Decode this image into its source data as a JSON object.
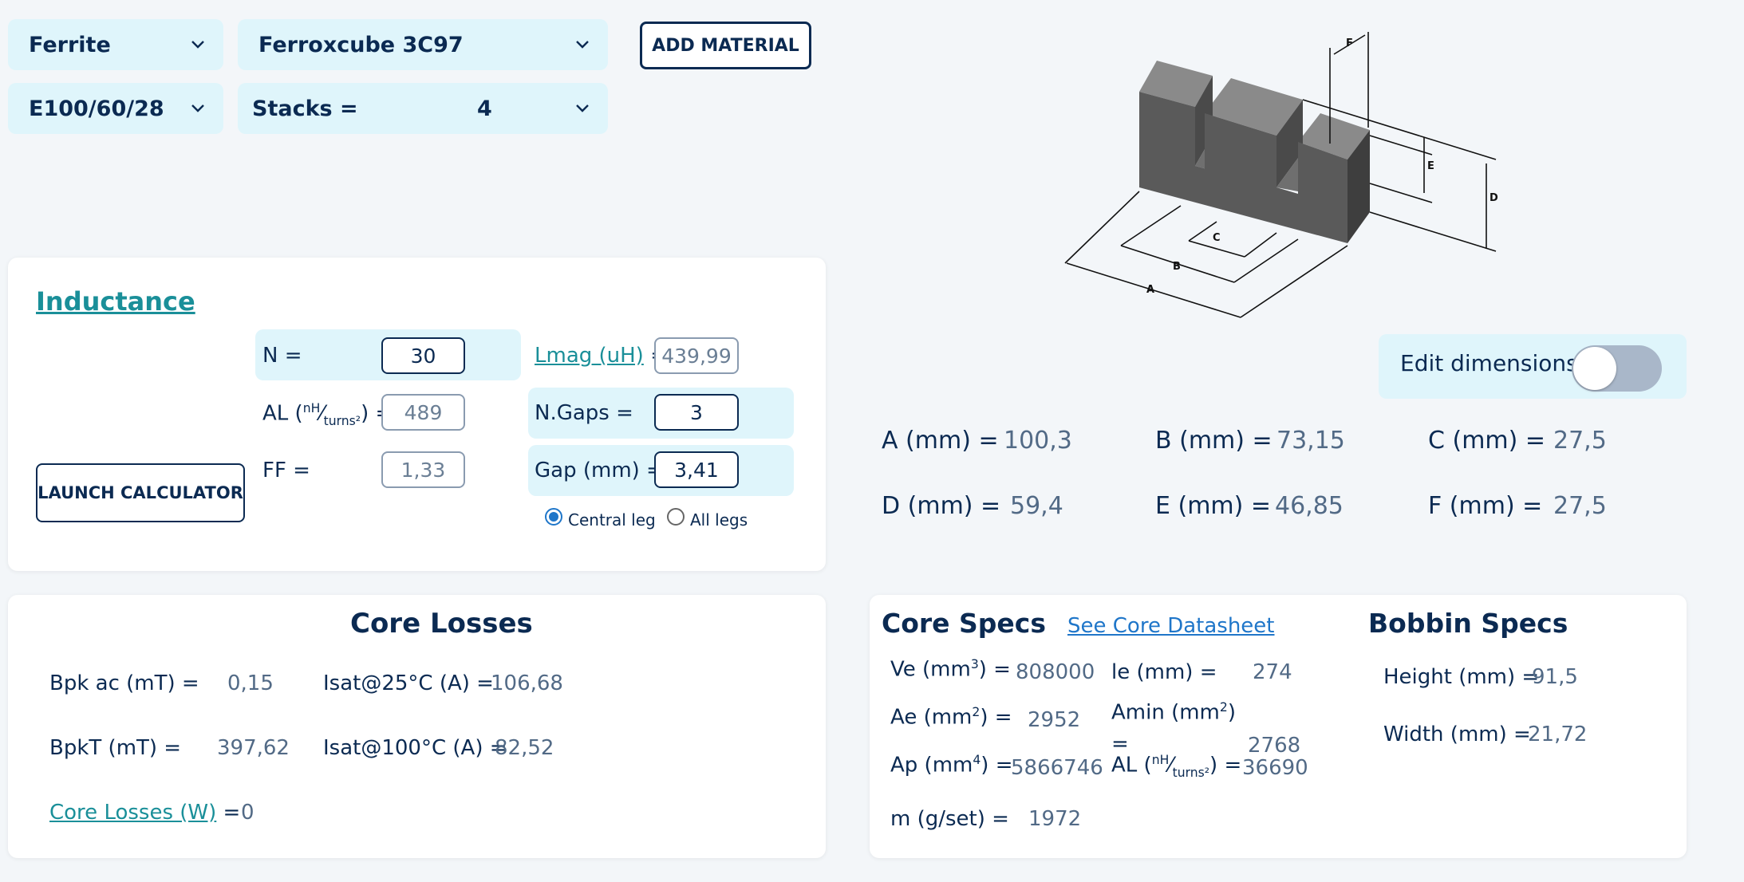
{
  "selects": {
    "material_type": "Ferrite",
    "material": "Ferroxcube 3C97",
    "shape": "E100/60/28",
    "stacks_label": "Stacks =",
    "stacks_value": "4"
  },
  "add_material_label": "ADD MATERIAL",
  "diagram": {
    "labels": [
      "A",
      "B",
      "C",
      "D",
      "E",
      "F"
    ]
  },
  "edit_dimensions_label": "Edit dimensions",
  "dimensions": [
    {
      "label": "A (mm) =",
      "value": "100,3"
    },
    {
      "label": "B (mm) =",
      "value": "73,15"
    },
    {
      "label": "C (mm) =",
      "value": "27,5"
    },
    {
      "label": "D (mm) =",
      "value": "59,4"
    },
    {
      "label": "E (mm) =",
      "value": "46,85"
    },
    {
      "label": "F (mm) =",
      "value": "27,5"
    }
  ],
  "inductance": {
    "title": "Inductance",
    "n_label": "N =",
    "n_value": "30",
    "al_label": "AL",
    "al_value": "489",
    "ff_label": "FF =",
    "ff_value": "1,33",
    "lmag_label": "Lmag (uH)",
    "lmag_value": "439,99",
    "ngaps_label": "N.Gaps =",
    "ngaps_value": "3",
    "gap_label": "Gap (mm) =",
    "gap_value": "3,41",
    "central_leg_label": "Central leg",
    "all_legs_label": "All legs",
    "launch_label": "LAUNCH CALCULATOR",
    "al_unit_num": "nH",
    "al_unit_den": "turns²"
  },
  "core_losses": {
    "title": "Core Losses",
    "bpk_ac_label": "Bpk ac (mT) =",
    "bpk_ac_value": "0,15",
    "bpkt_label": "BpkT (mT) =",
    "bpkt_value": "397,62",
    "isat25_label": "Isat@25°C (A) =",
    "isat25_value": "106,68",
    "isat100_label": "Isat@100°C (A) =",
    "isat100_value": "82,52",
    "losses_label": "Core Losses (W)",
    "losses_value": "0"
  },
  "core_specs": {
    "title": "Core Specs",
    "datasheet_link": "See Core Datasheet",
    "ve_value": "808000",
    "le_label": "le (mm) =",
    "le_value": "274",
    "ae_value": "2952",
    "amin_value": "2768",
    "ap_value": "5866746",
    "al_value": "36690",
    "m_label": "m (g/set) =",
    "m_value": "1972"
  },
  "bobbin_specs": {
    "title": "Bobbin Specs",
    "height_label": "Height (mm) =",
    "height_value": "91,5",
    "width_label": "Width (mm) =",
    "width_value": "21,72"
  }
}
